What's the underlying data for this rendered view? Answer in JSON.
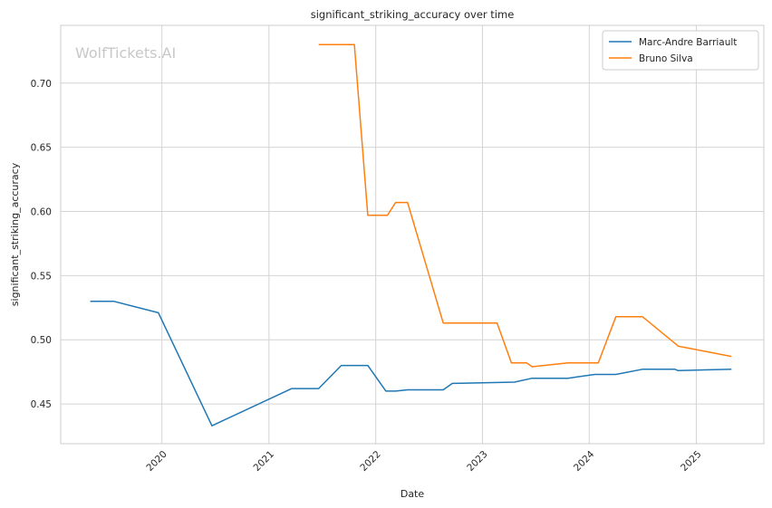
{
  "chart_data": {
    "type": "line",
    "title": "significant_striking_accuracy over time",
    "xlabel": "Date",
    "ylabel": "significant_striking_accuracy",
    "xlim": [
      "2019-01-20",
      "2025-08-20"
    ],
    "ylim": [
      0.419,
      0.745
    ],
    "x_ticks": [
      "2020",
      "2021",
      "2022",
      "2023",
      "2024",
      "2025"
    ],
    "y_ticks": [
      "0.45",
      "0.50",
      "0.55",
      "0.60",
      "0.65",
      "0.70"
    ],
    "grid": true,
    "legend_position": "top-right",
    "watermark": "WolfTickets.AI",
    "series": [
      {
        "name": "Marc-Andre Barriault",
        "color": "#1f77b4",
        "points": [
          [
            "2019-05-01",
            0.53
          ],
          [
            "2019-07-20",
            0.53
          ],
          [
            "2019-12-20",
            0.521
          ],
          [
            "2020-06-20",
            0.433
          ],
          [
            "2021-03-20",
            0.462
          ],
          [
            "2021-06-20",
            0.462
          ],
          [
            "2021-09-05",
            0.48
          ],
          [
            "2021-12-05",
            0.48
          ],
          [
            "2022-02-05",
            0.46
          ],
          [
            "2022-03-10",
            0.46
          ],
          [
            "2022-04-20",
            0.461
          ],
          [
            "2022-08-20",
            0.461
          ],
          [
            "2022-09-20",
            0.466
          ],
          [
            "2023-04-20",
            0.467
          ],
          [
            "2023-06-20",
            0.47
          ],
          [
            "2023-10-20",
            0.47
          ],
          [
            "2024-01-20",
            0.473
          ],
          [
            "2024-04-01",
            0.473
          ],
          [
            "2024-07-01",
            0.477
          ],
          [
            "2024-10-20",
            0.477
          ],
          [
            "2024-10-30",
            0.476
          ],
          [
            "2025-05-01",
            0.477
          ]
        ]
      },
      {
        "name": "Bruno Silva",
        "color": "#ff7f0e",
        "points": [
          [
            "2021-06-20",
            0.73
          ],
          [
            "2021-10-20",
            0.73
          ],
          [
            "2021-12-05",
            0.597
          ],
          [
            "2022-02-10",
            0.597
          ],
          [
            "2022-03-10",
            0.607
          ],
          [
            "2022-04-20",
            0.607
          ],
          [
            "2022-08-20",
            0.513
          ],
          [
            "2023-02-20",
            0.513
          ],
          [
            "2023-04-10",
            0.482
          ],
          [
            "2023-06-01",
            0.482
          ],
          [
            "2023-06-20",
            0.479
          ],
          [
            "2023-10-20",
            0.482
          ],
          [
            "2024-02-01",
            0.482
          ],
          [
            "2024-04-01",
            0.518
          ],
          [
            "2024-07-01",
            0.518
          ],
          [
            "2024-11-01",
            0.495
          ],
          [
            "2025-05-01",
            0.487
          ]
        ]
      }
    ]
  }
}
